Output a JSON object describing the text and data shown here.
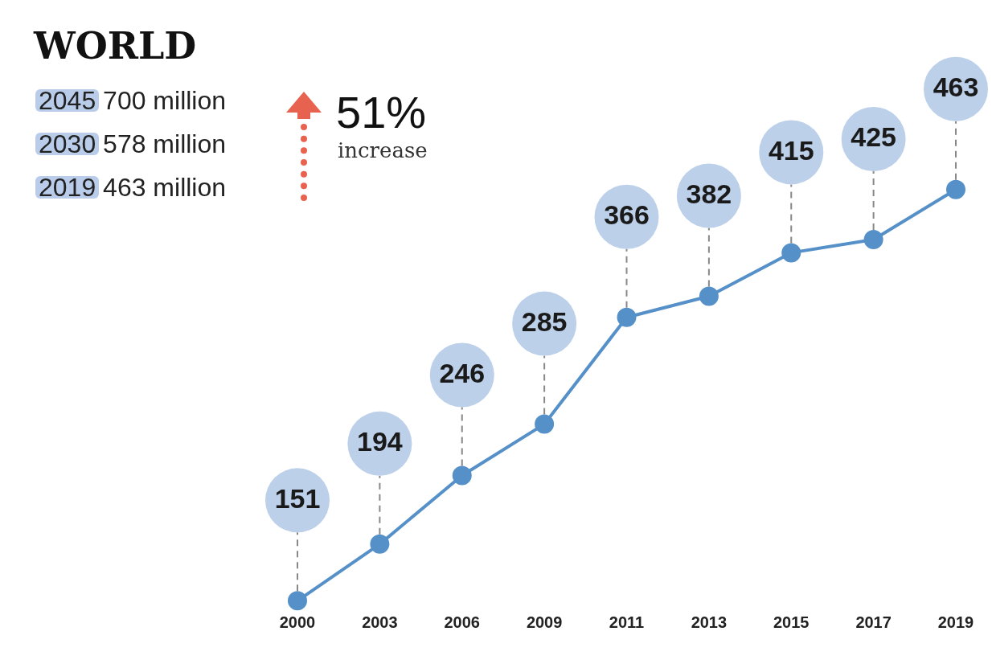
{
  "chart_data": {
    "type": "line",
    "title": "WORLD",
    "categories": [
      "2000",
      "2003",
      "2006",
      "2009",
      "2011",
      "2013",
      "2015",
      "2017",
      "2019"
    ],
    "series": [
      {
        "color": "#5590c8",
        "values": [
          151,
          194,
          246,
          285,
          366,
          382,
          415,
          425,
          463
        ]
      }
    ],
    "data_labels": true,
    "marker": "circle",
    "line_style": "solid",
    "tick_labels": "x",
    "annotations": [
      "2045 700 million",
      "2030 578 million",
      "2019 463 million",
      "51%",
      "increase"
    ]
  }
}
